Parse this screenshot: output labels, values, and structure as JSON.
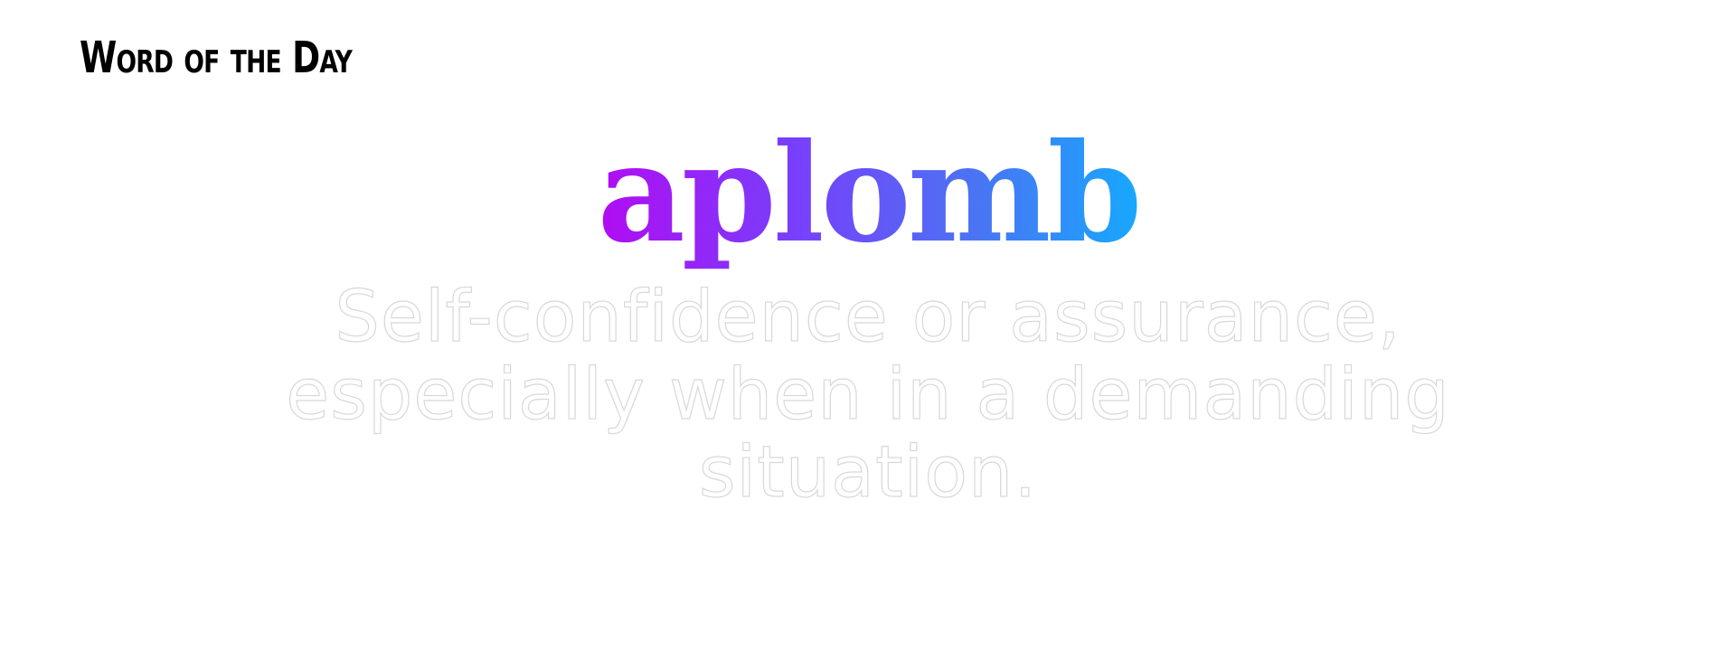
{
  "header": {
    "title": "Word of the Day"
  },
  "word_card": {
    "word": "aplomb",
    "definition": "Self-confidence or assurance, especially when in a demanding situation."
  },
  "colors": {
    "background": "#ffffff",
    "title": "#000000",
    "word_gradient_start": "#b10cf2",
    "word_gradient_end": "#17a8fe",
    "definition_outline": "#d8d8d8"
  }
}
